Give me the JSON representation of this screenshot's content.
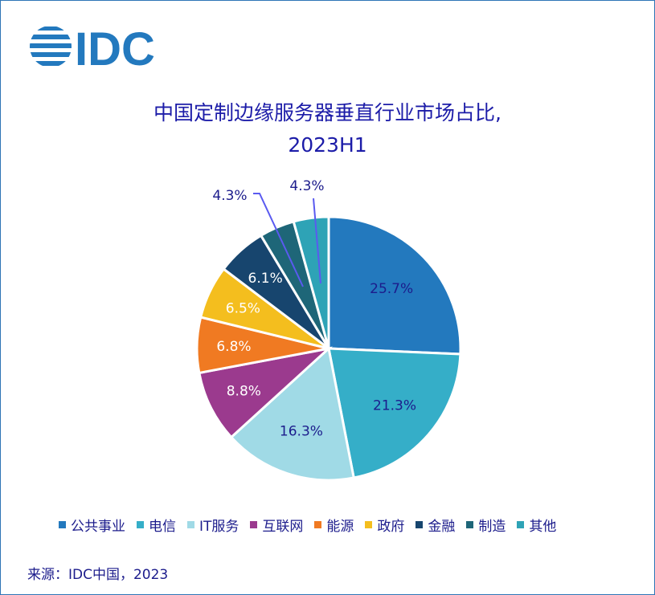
{
  "logo_text": "IDC",
  "title_line1": "中国定制边缘服务器垂直行业市场占比,",
  "title_line2": "2023H1",
  "source": "来源：IDC中国，2023",
  "chart_data": {
    "type": "pie",
    "start": "12 o'clock, clockwise",
    "categories": [
      "公共事业",
      "电信",
      "IT服务",
      "互联网",
      "能源",
      "政府",
      "金融",
      "制造",
      "其他"
    ],
    "values": [
      25.7,
      21.3,
      16.3,
      8.8,
      6.8,
      6.5,
      6.1,
      4.3,
      4.3
    ],
    "labels": [
      "25.7%",
      "21.3%",
      "16.3%",
      "8.8%",
      "6.8%",
      "6.5%",
      "6.1%",
      "4.3%",
      "4.3%"
    ],
    "colors": [
      "#2379BE",
      "#35AEC8",
      "#A0DAE6",
      "#9B3A8E",
      "#F07A22",
      "#F4BE1E",
      "#17456E",
      "#1E6678",
      "#2EA3B6"
    ],
    "label_colors": [
      "#1C1C8C",
      "#1C1C8C",
      "#1C1C8C",
      "#ffffff",
      "#ffffff",
      "#ffffff",
      "#ffffff",
      "#1C1C8C",
      "#1C1C8C"
    ],
    "legend_placement": "bottom"
  }
}
